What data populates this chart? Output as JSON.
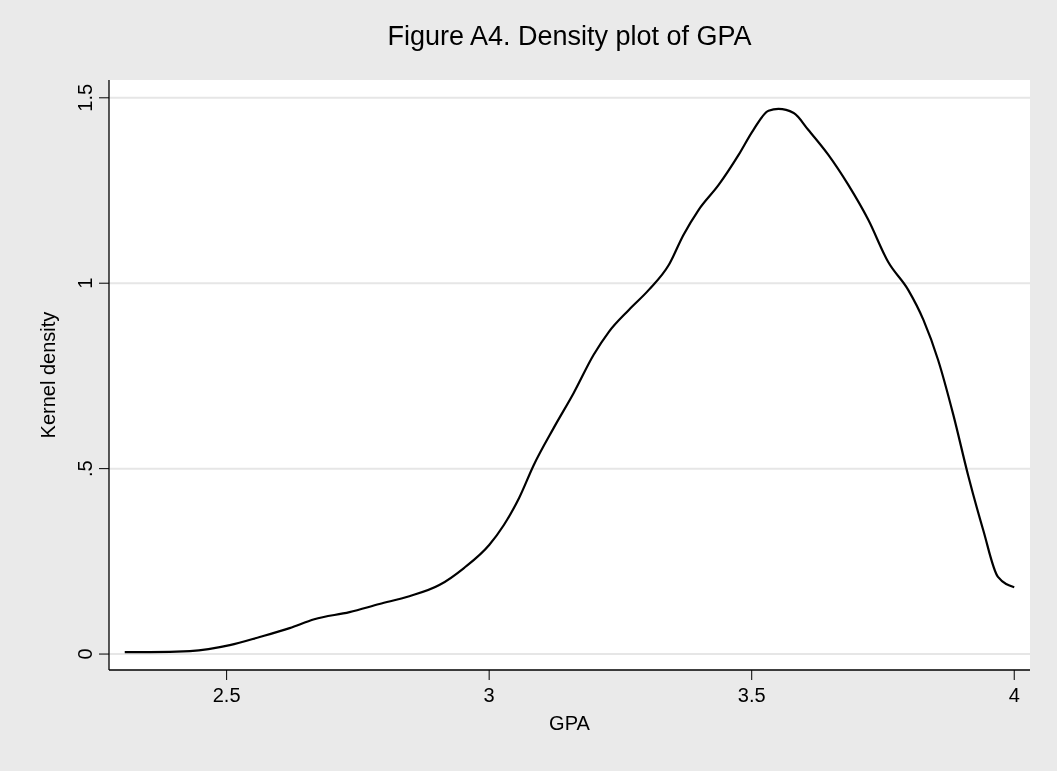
{
  "chart_data": {
    "type": "line",
    "title": "Figure A4. Density plot of GPA",
    "xlabel": "GPA",
    "ylabel": "Kernel density",
    "xlim": [
      2.276,
      4.03
    ],
    "ylim": [
      -0.043,
      1.548
    ],
    "xticks": [
      2.5,
      3,
      3.5,
      4
    ],
    "yticks": [
      {
        "value": 0,
        "label": "0"
      },
      {
        "value": 0.5,
        "label": ".5"
      },
      {
        "value": 1,
        "label": "1"
      },
      {
        "value": 1.5,
        "label": "1.5"
      }
    ],
    "grid": "y",
    "marker": "none",
    "line_style": "solid",
    "series": [
      {
        "color": "#000000",
        "x": [
          2.306,
          2.354,
          2.43,
          2.506,
          2.563,
          2.62,
          2.667,
          2.734,
          2.791,
          2.848,
          2.905,
          2.952,
          3.0,
          3.028,
          3.057,
          3.085,
          3.123,
          3.161,
          3.199,
          3.228,
          3.266,
          3.304,
          3.342,
          3.37,
          3.399,
          3.437,
          3.475,
          3.503,
          3.532,
          3.551,
          3.58,
          3.608,
          3.646,
          3.684,
          3.722,
          3.76,
          3.798,
          3.827,
          3.855,
          3.884,
          3.912,
          3.941,
          3.969,
          4.0
        ],
        "values": [
          0.005,
          0.005,
          0.008,
          0.024,
          0.046,
          0.07,
          0.094,
          0.113,
          0.135,
          0.156,
          0.186,
          0.232,
          0.294,
          0.348,
          0.421,
          0.51,
          0.61,
          0.704,
          0.807,
          0.869,
          0.928,
          0.982,
          1.049,
          1.13,
          1.198,
          1.265,
          1.346,
          1.413,
          1.465,
          1.47,
          1.459,
          1.413,
          1.346,
          1.265,
          1.171,
          1.057,
          0.982,
          0.901,
          0.793,
          0.645,
          0.483,
          0.334,
          0.208,
          0.18
        ]
      }
    ]
  }
}
